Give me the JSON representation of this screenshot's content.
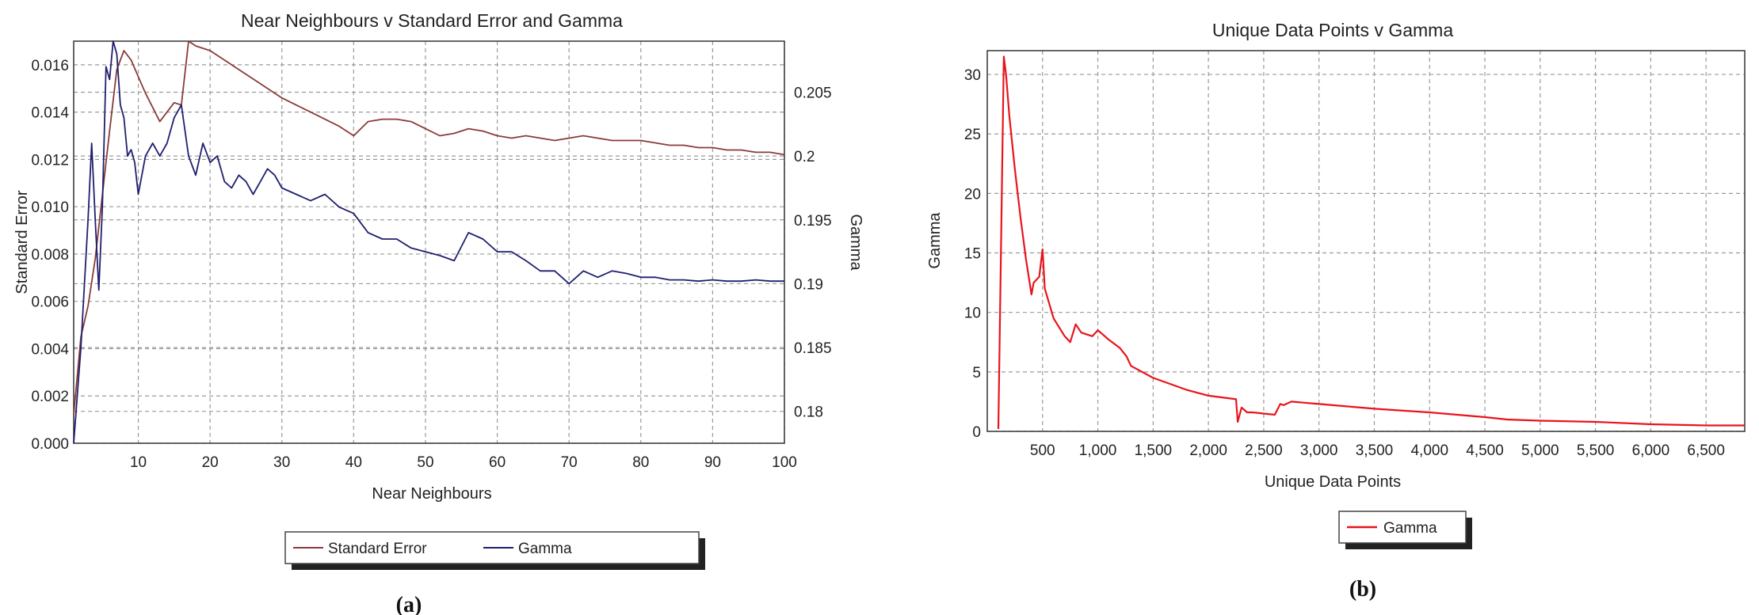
{
  "colors": {
    "standard_error": "#8b3a3a",
    "gamma_a": "#1f1f6e",
    "gamma_b": "#e8141c",
    "grid": "#9a9a9a"
  },
  "chart_data": [
    {
      "type": "line",
      "title": "Near Neighbours v Standard Error and Gamma",
      "xlabel": "Near Neighbours",
      "ylabel": "Standard Error",
      "ylabel_right": "Gamma",
      "xlim": [
        1,
        100
      ],
      "ylim": [
        0,
        0.017
      ],
      "ylim_right": [
        0.1775,
        0.209
      ],
      "xticks": [
        "10",
        "20",
        "30",
        "40",
        "50",
        "60",
        "70",
        "80",
        "90",
        "100"
      ],
      "xtick_values": [
        10,
        20,
        30,
        40,
        50,
        60,
        70,
        80,
        90,
        100
      ],
      "yticks": [
        "0.000",
        "0.002",
        "0.004",
        "0.006",
        "0.008",
        "0.010",
        "0.012",
        "0.014",
        "0.016"
      ],
      "ytick_values": [
        0,
        0.002,
        0.004,
        0.006,
        0.008,
        0.01,
        0.012,
        0.014,
        0.016
      ],
      "yticks_right": [
        "0.18",
        "0.185",
        "0.19",
        "0.195",
        "0.2",
        "0.205"
      ],
      "ytick_right_values": [
        0.18,
        0.185,
        0.19,
        0.195,
        0.2,
        0.205
      ],
      "grid": true,
      "legend_position": "bottom",
      "series": [
        {
          "name": "Standard Error",
          "axis": "left",
          "x": [
            1,
            2,
            3,
            4,
            5,
            6,
            7,
            8,
            9,
            10,
            11,
            12,
            13,
            14,
            15,
            16,
            17,
            18,
            20,
            22,
            24,
            26,
            28,
            30,
            32,
            34,
            36,
            38,
            40,
            42,
            44,
            46,
            48,
            50,
            52,
            54,
            56,
            58,
            60,
            62,
            64,
            66,
            68,
            70,
            72,
            74,
            76,
            78,
            80,
            82,
            84,
            86,
            88,
            90,
            92,
            94,
            96,
            98,
            100
          ],
          "y": [
            0.0012,
            0.0045,
            0.0058,
            0.0078,
            0.0105,
            0.0132,
            0.0158,
            0.0166,
            0.0162,
            0.0155,
            0.0148,
            0.0142,
            0.0136,
            0.014,
            0.0144,
            0.0143,
            0.017,
            0.0168,
            0.0166,
            0.0162,
            0.0158,
            0.0154,
            0.015,
            0.0146,
            0.0143,
            0.014,
            0.0137,
            0.0134,
            0.013,
            0.0136,
            0.0137,
            0.0137,
            0.0136,
            0.0133,
            0.013,
            0.0131,
            0.0133,
            0.0132,
            0.013,
            0.0129,
            0.013,
            0.0129,
            0.0128,
            0.0129,
            0.013,
            0.0129,
            0.0128,
            0.0128,
            0.0128,
            0.0127,
            0.0126,
            0.0126,
            0.0125,
            0.0125,
            0.0124,
            0.0124,
            0.0123,
            0.0123,
            0.0122
          ]
        },
        {
          "name": "Gamma",
          "axis": "right",
          "x": [
            1,
            2,
            3,
            3.5,
            4,
            4.5,
            5,
            5.5,
            6,
            6.5,
            7,
            7.5,
            8,
            8.5,
            9,
            9.5,
            10,
            11,
            12,
            13,
            14,
            15,
            16,
            17,
            18,
            19,
            20,
            21,
            22,
            23,
            24,
            25,
            26,
            27,
            28,
            29,
            30,
            32,
            34,
            36,
            38,
            40,
            42,
            44,
            46,
            48,
            50,
            52,
            54,
            56,
            58,
            60,
            62,
            64,
            66,
            68,
            70,
            72,
            74,
            76,
            78,
            80,
            82,
            84,
            86,
            88,
            90,
            92,
            94,
            96,
            98,
            100
          ],
          "y": [
            0.1775,
            0.185,
            0.195,
            0.201,
            0.195,
            0.1895,
            0.196,
            0.207,
            0.206,
            0.209,
            0.208,
            0.204,
            0.203,
            0.2,
            0.2005,
            0.1995,
            0.197,
            0.2,
            0.201,
            0.2,
            0.201,
            0.203,
            0.204,
            0.2,
            0.1985,
            0.201,
            0.1995,
            0.2,
            0.198,
            0.1975,
            0.1985,
            0.198,
            0.197,
            0.198,
            0.199,
            0.1985,
            0.1975,
            0.197,
            0.1965,
            0.197,
            0.196,
            0.1955,
            0.194,
            0.1935,
            0.1935,
            0.1928,
            0.1925,
            0.1922,
            0.1918,
            0.194,
            0.1935,
            0.1925,
            0.1925,
            0.1918,
            0.191,
            0.191,
            0.19,
            0.191,
            0.1905,
            0.191,
            0.1908,
            0.1905,
            0.1905,
            0.1903,
            0.1903,
            0.1902,
            0.1903,
            0.1902,
            0.1902,
            0.1903,
            0.1902,
            0.1902
          ]
        }
      ]
    },
    {
      "type": "line",
      "title": "Unique Data Points v Gamma",
      "xlabel": "Unique Data Points",
      "ylabel": "Gamma",
      "xlim": [
        0,
        6850
      ],
      "ylim": [
        0,
        32
      ],
      "xticks": [
        "500",
        "1,000",
        "1,500",
        "2,000",
        "2,500",
        "3,000",
        "3,500",
        "4,000",
        "4,500",
        "5,000",
        "5,500",
        "6,000",
        "6,500"
      ],
      "xtick_values": [
        500,
        1000,
        1500,
        2000,
        2500,
        3000,
        3500,
        4000,
        4500,
        5000,
        5500,
        6000,
        6500
      ],
      "yticks": [
        "0",
        "5",
        "10",
        "15",
        "20",
        "25",
        "30"
      ],
      "ytick_values": [
        0,
        5,
        10,
        15,
        20,
        25,
        30
      ],
      "grid": true,
      "legend_position": "bottom",
      "series": [
        {
          "name": "Gamma",
          "x": [
            100,
            150,
            170,
            200,
            250,
            300,
            350,
            400,
            420,
            470,
            500,
            520,
            600,
            700,
            750,
            800,
            850,
            950,
            1000,
            1100,
            1200,
            1260,
            1300,
            1500,
            1800,
            2000,
            2250,
            2265,
            2300,
            2350,
            2400,
            2600,
            2650,
            2680,
            2750,
            3000,
            3500,
            4000,
            4500,
            4700,
            5000,
            5500,
            6000,
            6500,
            6850
          ],
          "y": [
            0.2,
            31.5,
            30.0,
            26.5,
            22.0,
            18.0,
            14.5,
            11.5,
            12.5,
            13.0,
            15.3,
            12.0,
            9.5,
            8.0,
            7.5,
            9.0,
            8.3,
            8.0,
            8.5,
            7.7,
            7.0,
            6.3,
            5.5,
            4.5,
            3.5,
            3.0,
            2.7,
            0.8,
            2.0,
            1.6,
            1.6,
            1.4,
            2.3,
            2.2,
            2.5,
            2.3,
            1.9,
            1.6,
            1.2,
            1.0,
            0.9,
            0.8,
            0.6,
            0.5,
            0.5
          ]
        }
      ]
    }
  ],
  "captions": {
    "a": "(a)",
    "b": "(b)"
  },
  "legend_a": {
    "items": [
      "Standard Error",
      "Gamma"
    ]
  },
  "legend_b": {
    "items": [
      "Gamma"
    ]
  }
}
